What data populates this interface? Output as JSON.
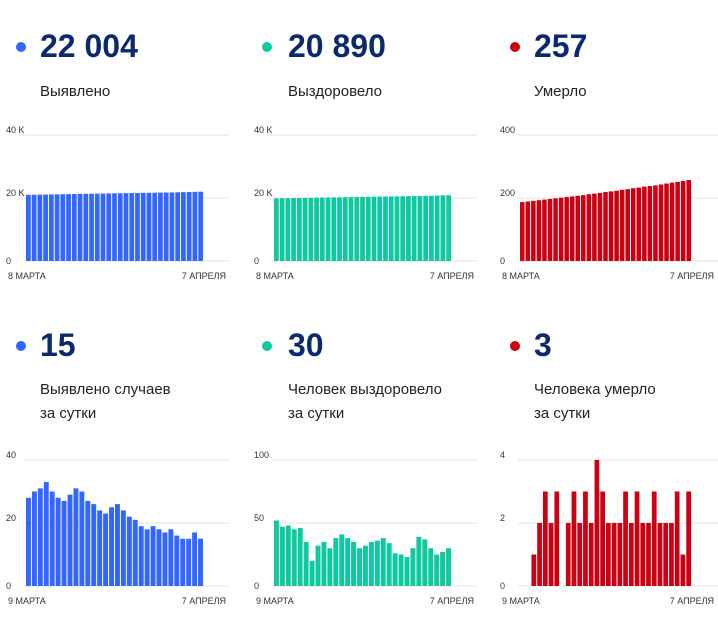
{
  "colors": {
    "blue": "#3366ff",
    "green": "#0fc9a0",
    "red": "#cc0011",
    "title": "#0b2a6e"
  },
  "panels": [
    {
      "number": "22 004",
      "label_lines": [
        "Выявлено"
      ]
    },
    {
      "number": "20 890",
      "label_lines": [
        "Выздоровело"
      ]
    },
    {
      "number": "257",
      "label_lines": [
        "Умерло"
      ]
    },
    {
      "number": "15",
      "label_lines": [
        "Выявлено случаев",
        "за сутки"
      ]
    },
    {
      "number": "30",
      "label_lines": [
        "Человек выздоровело",
        "за сутки"
      ]
    },
    {
      "number": "3",
      "label_lines": [
        "Человека умерло",
        "за сутки"
      ]
    }
  ],
  "chart_data": [
    {
      "type": "bar",
      "color": "#3366ff",
      "x_start_label": "8 МАРТА",
      "x_end_label": "7 АПРЕЛЯ",
      "yticks": [
        0,
        20000,
        40000
      ],
      "ytick_labels": [
        "0",
        "20 K",
        "40 K"
      ],
      "ylim": [
        0,
        40000
      ],
      "values": [
        21010,
        21040,
        21070,
        21100,
        21135,
        21165,
        21200,
        21235,
        21265,
        21300,
        21330,
        21360,
        21390,
        21420,
        21450,
        21480,
        21510,
        21540,
        21570,
        21600,
        21625,
        21650,
        21680,
        21710,
        21740,
        21770,
        21810,
        21850,
        21900,
        21950,
        22004
      ]
    },
    {
      "type": "bar",
      "color": "#0fc9a0",
      "x_start_label": "8 МАРТА",
      "x_end_label": "7 АПРЕЛЯ",
      "yticks": [
        0,
        20000,
        40000
      ],
      "ytick_labels": [
        "0",
        "20 K",
        "40 K"
      ],
      "ylim": [
        0,
        40000
      ],
      "values": [
        19900,
        19930,
        19960,
        19990,
        20020,
        20050,
        20080,
        20110,
        20140,
        20170,
        20200,
        20230,
        20260,
        20290,
        20320,
        20350,
        20380,
        20410,
        20440,
        20470,
        20500,
        20530,
        20560,
        20590,
        20620,
        20650,
        20690,
        20730,
        20780,
        20840,
        20890
      ]
    },
    {
      "type": "bar",
      "color": "#cc0011",
      "x_start_label": "8 МАРТА",
      "x_end_label": "7 АПРЕЛЯ",
      "yticks": [
        0,
        200,
        400
      ],
      "ytick_labels": [
        "0",
        "200",
        "400"
      ],
      "ylim": [
        0,
        400
      ],
      "values": [
        187,
        189,
        191,
        193,
        195,
        197,
        199,
        201,
        203,
        205,
        207,
        209,
        212,
        214,
        216,
        219,
        221,
        223,
        226,
        228,
        231,
        233,
        236,
        238,
        240,
        243,
        246,
        249,
        251,
        254,
        257
      ]
    },
    {
      "type": "bar",
      "color": "#3366ff",
      "x_start_label": "9 МАРТА",
      "x_end_label": "7 АПРЕЛЯ",
      "yticks": [
        0,
        20,
        40
      ],
      "ytick_labels": [
        "0",
        "20",
        "40"
      ],
      "ylim": [
        0,
        40
      ],
      "values": [
        28,
        30,
        31,
        33,
        30,
        28,
        27,
        29,
        31,
        30,
        27,
        26,
        24,
        23,
        25,
        26,
        24,
        22,
        21,
        19,
        18,
        19,
        18,
        17,
        18,
        16,
        15,
        15,
        17,
        15
      ]
    },
    {
      "type": "bar",
      "color": "#0fc9a0",
      "x_start_label": "9 МАРТА",
      "x_end_label": "7 АПРЕЛЯ",
      "yticks": [
        0,
        50,
        100
      ],
      "ytick_labels": [
        "0",
        "50",
        "100"
      ],
      "ylim": [
        0,
        100
      ],
      "values": [
        52,
        47,
        48,
        45,
        46,
        35,
        20,
        32,
        35,
        30,
        38,
        41,
        38,
        35,
        30,
        32,
        35,
        36,
        38,
        34,
        26,
        25,
        23,
        30,
        39,
        37,
        30,
        25,
        27,
        30
      ]
    },
    {
      "type": "bar",
      "color": "#cc0011",
      "x_start_label": "9 МАРТА",
      "x_end_label": "7 АПРЕЛЯ",
      "yticks": [
        0,
        2,
        4
      ],
      "ytick_labels": [
        "0",
        "2",
        "4"
      ],
      "ylim": [
        0,
        4
      ],
      "values": [
        0,
        0,
        1,
        2,
        3,
        2,
        3,
        0,
        2,
        3,
        2,
        3,
        2,
        4,
        3,
        2,
        2,
        2,
        3,
        2,
        3,
        2,
        2,
        3,
        2,
        2,
        2,
        3,
        1,
        3
      ]
    }
  ]
}
